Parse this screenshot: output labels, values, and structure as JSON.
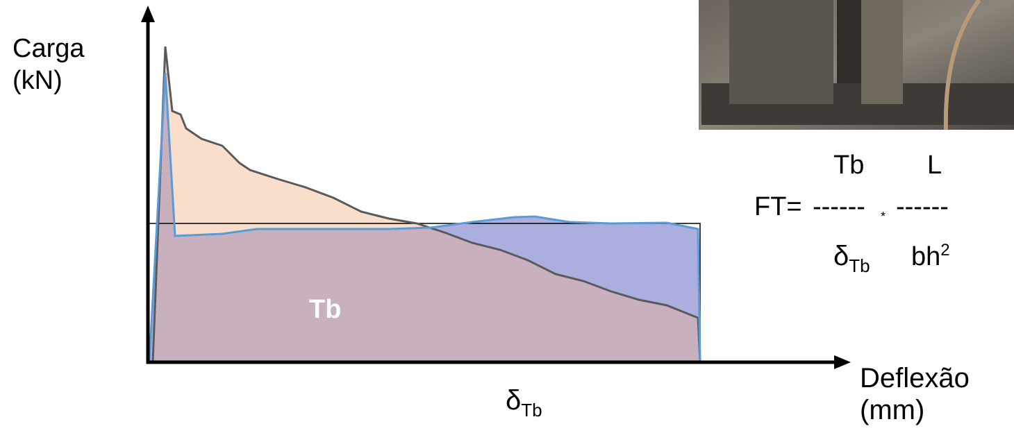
{
  "axes": {
    "y_label": [
      "Carga",
      "(kN)"
    ],
    "x_label": [
      "Deflexão",
      "(mm)"
    ]
  },
  "area_label": "Tb",
  "x_marker": {
    "symbol": "δ",
    "subscript": "Tb"
  },
  "formula": {
    "lhs": "FT=",
    "numerator_1": "Tb",
    "numerator_2": "L",
    "dashes_1": "------",
    "times": "*",
    "dashes_2": "------",
    "denominator_1": {
      "symbol": "δ",
      "subscript": "Tb"
    },
    "denominator_2": {
      "base": "bh",
      "superscript": "2"
    }
  }
}
